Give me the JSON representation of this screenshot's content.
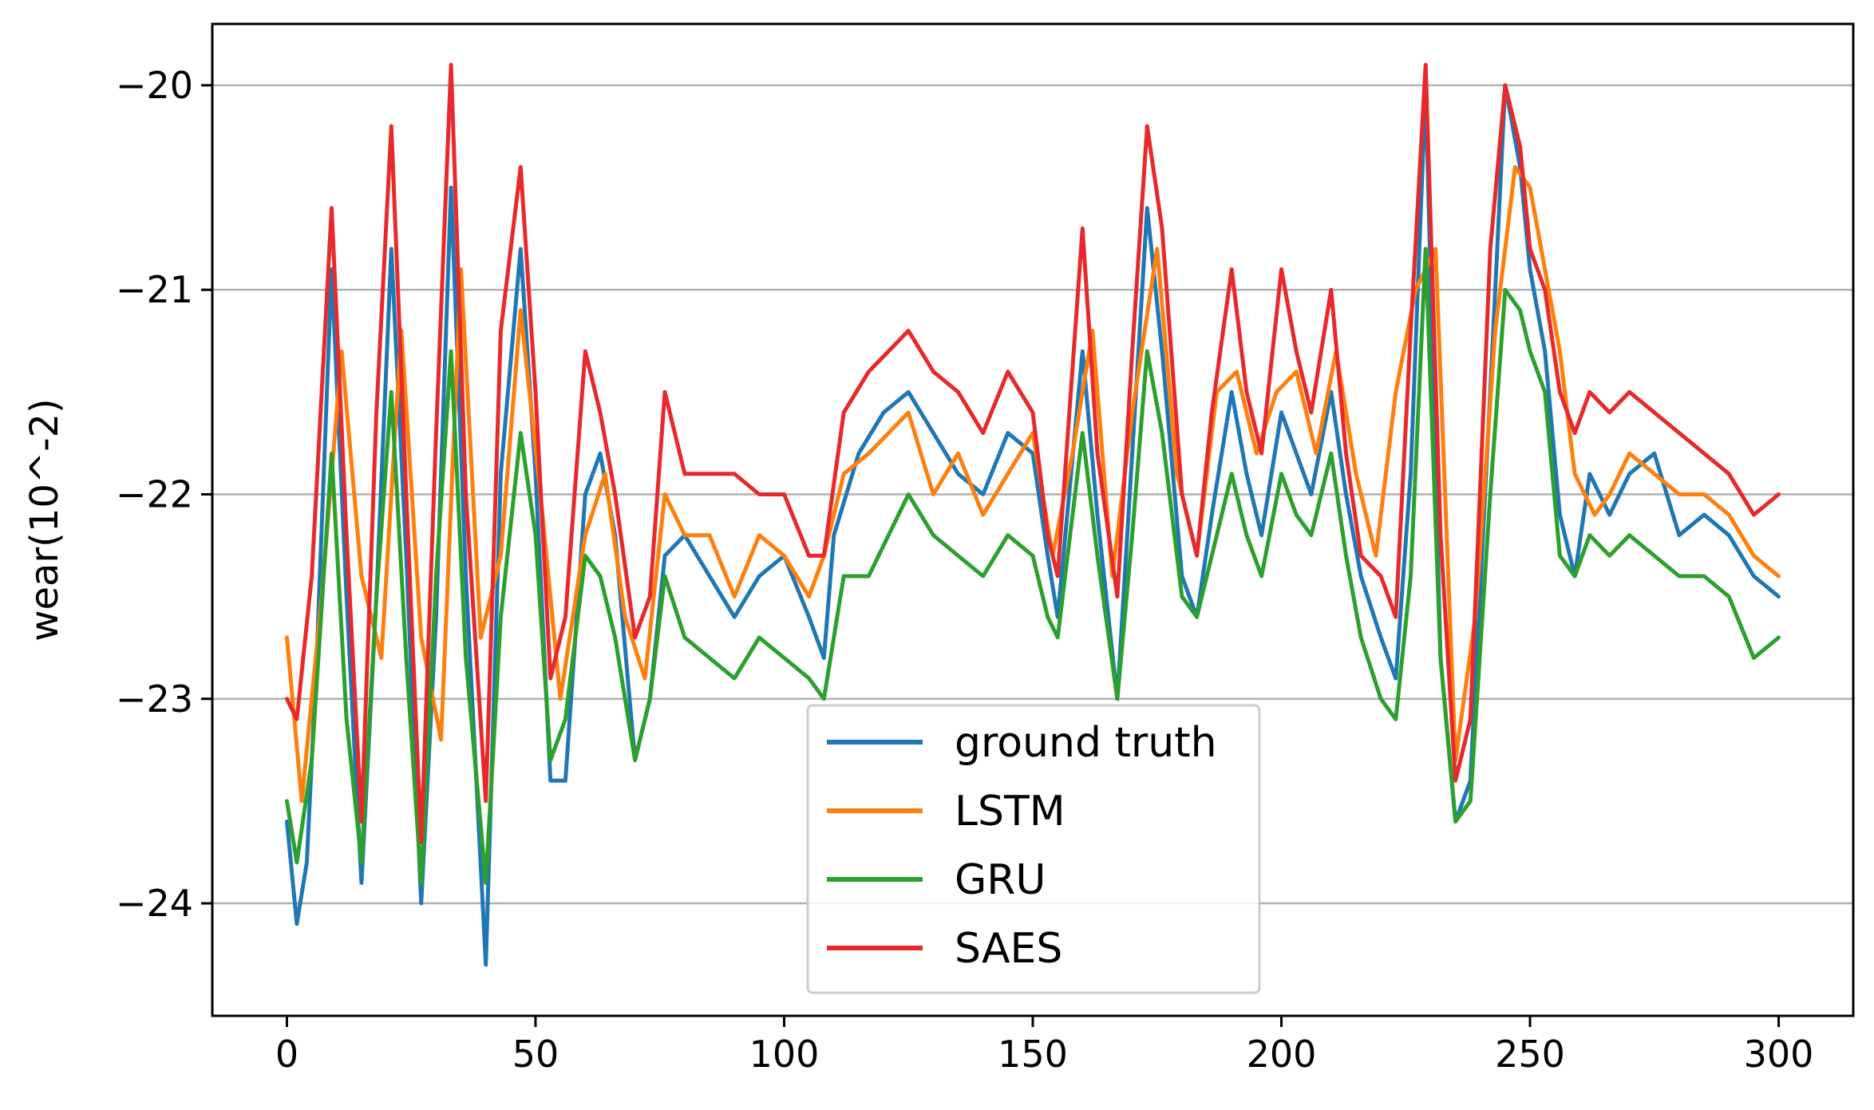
{
  "chart_data": {
    "type": "line",
    "title": "",
    "xlabel": "",
    "ylabel": "wear(10^-2)",
    "xlim": [
      -15,
      315
    ],
    "ylim": [
      -24.55,
      -19.7
    ],
    "xticks": [
      0,
      50,
      100,
      150,
      200,
      250,
      300
    ],
    "yticks": [
      -20,
      -21,
      -22,
      -23,
      -24
    ],
    "xtick_labels": [
      "0",
      "50",
      "100",
      "150",
      "200",
      "250",
      "300"
    ],
    "ytick_labels": [
      "−20",
      "−21",
      "−22",
      "−23",
      "−24"
    ],
    "grid": "horizontal",
    "legend_position": "lower-center",
    "series": [
      {
        "name": "ground truth",
        "color": "#1f77b4",
        "x": [
          0,
          2,
          4,
          6,
          9,
          12,
          15,
          18,
          21,
          24,
          27,
          30,
          33,
          36,
          40,
          43,
          47,
          50,
          53,
          56,
          60,
          63,
          66,
          70,
          73,
          76,
          80,
          85,
          90,
          95,
          100,
          105,
          108,
          110,
          115,
          120,
          125,
          130,
          135,
          140,
          145,
          150,
          153,
          155,
          160,
          163,
          167,
          170,
          173,
          176,
          180,
          183,
          186,
          190,
          193,
          196,
          200,
          203,
          206,
          210,
          213,
          216,
          220,
          223,
          226,
          229,
          232,
          235,
          238,
          242,
          245,
          248,
          250,
          253,
          256,
          259,
          262,
          266,
          270,
          275,
          280,
          285,
          290,
          295,
          300
        ],
        "values": [
          -23.6,
          -24.1,
          -23.8,
          -22.8,
          -20.9,
          -22.5,
          -23.9,
          -22.5,
          -20.8,
          -22.3,
          -24.0,
          -22.6,
          -20.5,
          -22.4,
          -24.3,
          -21.9,
          -20.8,
          -21.9,
          -23.4,
          -23.4,
          -22.0,
          -21.8,
          -22.2,
          -23.3,
          -23.0,
          -22.3,
          -22.2,
          -22.4,
          -22.6,
          -22.4,
          -22.3,
          -22.6,
          -22.8,
          -22.2,
          -21.8,
          -21.6,
          -21.5,
          -21.7,
          -21.9,
          -22.0,
          -21.7,
          -21.8,
          -22.3,
          -22.6,
          -21.3,
          -22.1,
          -23.0,
          -21.8,
          -20.6,
          -21.3,
          -22.4,
          -22.6,
          -22.1,
          -21.5,
          -21.9,
          -22.2,
          -21.6,
          -21.8,
          -22.0,
          -21.5,
          -22.0,
          -22.4,
          -22.7,
          -22.9,
          -21.9,
          -20.0,
          -22.8,
          -23.6,
          -23.4,
          -21.5,
          -20.0,
          -20.4,
          -20.9,
          -21.3,
          -22.1,
          -22.4,
          -21.9,
          -22.1,
          -21.9,
          -21.8,
          -22.2,
          -22.1,
          -22.2,
          -22.4,
          -22.5
        ]
      },
      {
        "name": "LSTM",
        "color": "#ff7f0e",
        "x": [
          0,
          3,
          7,
          11,
          15,
          19,
          23,
          27,
          31,
          35,
          39,
          43,
          47,
          51,
          55,
          60,
          64,
          68,
          72,
          76,
          80,
          85,
          90,
          95,
          100,
          105,
          108,
          112,
          117,
          121,
          125,
          130,
          135,
          140,
          145,
          150,
          154,
          158,
          162,
          166,
          170,
          175,
          179,
          183,
          187,
          191,
          195,
          199,
          203,
          207,
          211,
          215,
          219,
          223,
          227,
          231,
          235,
          239,
          243,
          247,
          250,
          253,
          256,
          259,
          263,
          266,
          270,
          275,
          280,
          285,
          290,
          295,
          300
        ],
        "values": [
          -22.7,
          -23.5,
          -22.5,
          -21.3,
          -22.4,
          -22.8,
          -21.2,
          -22.7,
          -23.2,
          -20.9,
          -22.7,
          -22.3,
          -21.1,
          -22.0,
          -23.0,
          -22.2,
          -21.9,
          -22.6,
          -22.9,
          -22.0,
          -22.2,
          -22.2,
          -22.5,
          -22.2,
          -22.3,
          -22.5,
          -22.3,
          -21.9,
          -21.8,
          -21.7,
          -21.6,
          -22.0,
          -21.8,
          -22.1,
          -21.9,
          -21.7,
          -22.3,
          -21.8,
          -21.2,
          -22.4,
          -21.6,
          -20.8,
          -21.9,
          -22.3,
          -21.5,
          -21.4,
          -21.8,
          -21.5,
          -21.4,
          -21.8,
          -21.3,
          -21.9,
          -22.3,
          -21.5,
          -21.0,
          -20.8,
          -23.3,
          -22.6,
          -21.2,
          -20.4,
          -20.5,
          -20.9,
          -21.3,
          -21.9,
          -22.1,
          -22.0,
          -21.8,
          -21.9,
          -22.0,
          -22.0,
          -22.1,
          -22.3,
          -22.4
        ]
      },
      {
        "name": "GRU",
        "color": "#2ca02c",
        "x": [
          0,
          2,
          5,
          9,
          12,
          15,
          18,
          21,
          24,
          27,
          30,
          33,
          36,
          40,
          43,
          47,
          50,
          53,
          56,
          60,
          63,
          66,
          70,
          73,
          76,
          80,
          85,
          90,
          95,
          100,
          105,
          108,
          112,
          117,
          121,
          125,
          130,
          135,
          140,
          145,
          150,
          153,
          155,
          160,
          163,
          167,
          170,
          173,
          176,
          180,
          183,
          186,
          190,
          193,
          196,
          200,
          203,
          206,
          210,
          213,
          216,
          220,
          223,
          226,
          229,
          232,
          235,
          238,
          242,
          245,
          248,
          250,
          253,
          256,
          259,
          262,
          266,
          270,
          275,
          280,
          285,
          290,
          295,
          300
        ],
        "values": [
          -23.5,
          -23.8,
          -23.3,
          -21.8,
          -23.1,
          -23.8,
          -22.5,
          -21.5,
          -22.8,
          -23.9,
          -22.4,
          -21.3,
          -22.8,
          -23.9,
          -22.6,
          -21.7,
          -22.2,
          -23.3,
          -23.1,
          -22.3,
          -22.4,
          -22.7,
          -23.3,
          -23.0,
          -22.4,
          -22.7,
          -22.8,
          -22.9,
          -22.7,
          -22.8,
          -22.9,
          -23.0,
          -22.4,
          -22.4,
          -22.2,
          -22.0,
          -22.2,
          -22.3,
          -22.4,
          -22.2,
          -22.3,
          -22.6,
          -22.7,
          -21.7,
          -22.3,
          -23.0,
          -22.2,
          -21.3,
          -21.7,
          -22.5,
          -22.6,
          -22.3,
          -21.9,
          -22.2,
          -22.4,
          -21.9,
          -22.1,
          -22.2,
          -21.8,
          -22.3,
          -22.7,
          -23.0,
          -23.1,
          -22.4,
          -20.8,
          -22.8,
          -23.6,
          -23.5,
          -22.0,
          -21.0,
          -21.1,
          -21.3,
          -21.5,
          -22.3,
          -22.4,
          -22.2,
          -22.3,
          -22.2,
          -22.3,
          -22.4,
          -22.4,
          -22.5,
          -22.8,
          -22.7
        ]
      },
      {
        "name": "SAES",
        "color": "#e8292c",
        "x": [
          0,
          2,
          5,
          9,
          12,
          15,
          18,
          21,
          24,
          27,
          30,
          33,
          36,
          40,
          43,
          47,
          50,
          53,
          56,
          60,
          63,
          66,
          70,
          73,
          76,
          80,
          85,
          90,
          95,
          100,
          105,
          108,
          112,
          117,
          121,
          125,
          130,
          135,
          140,
          145,
          150,
          153,
          155,
          160,
          163,
          167,
          170,
          173,
          176,
          180,
          183,
          186,
          190,
          193,
          196,
          200,
          203,
          206,
          210,
          213,
          216,
          220,
          223,
          226,
          229,
          232,
          235,
          238,
          242,
          245,
          248,
          250,
          253,
          256,
          259,
          262,
          266,
          270,
          275,
          280,
          285,
          290,
          295,
          300
        ],
        "values": [
          -23.0,
          -23.1,
          -22.4,
          -20.6,
          -22.2,
          -23.6,
          -21.6,
          -20.2,
          -22.0,
          -23.7,
          -21.7,
          -19.9,
          -22.0,
          -23.5,
          -21.2,
          -20.4,
          -21.5,
          -22.9,
          -22.6,
          -21.3,
          -21.6,
          -22.0,
          -22.7,
          -22.5,
          -21.5,
          -21.9,
          -21.9,
          -21.9,
          -22.0,
          -22.0,
          -22.3,
          -22.3,
          -21.6,
          -21.4,
          -21.3,
          -21.2,
          -21.4,
          -21.5,
          -21.7,
          -21.4,
          -21.6,
          -22.2,
          -22.4,
          -20.7,
          -21.8,
          -22.5,
          -21.3,
          -20.2,
          -20.7,
          -22.0,
          -22.3,
          -21.6,
          -20.9,
          -21.5,
          -21.8,
          -20.9,
          -21.3,
          -21.6,
          -21.0,
          -21.8,
          -22.3,
          -22.4,
          -22.6,
          -21.2,
          -19.9,
          -22.2,
          -23.4,
          -23.1,
          -20.8,
          -20.0,
          -20.3,
          -20.8,
          -21.0,
          -21.5,
          -21.7,
          -21.5,
          -21.6,
          -21.5,
          -21.6,
          -21.7,
          -21.8,
          -21.9,
          -22.1,
          -22.0
        ]
      }
    ]
  }
}
